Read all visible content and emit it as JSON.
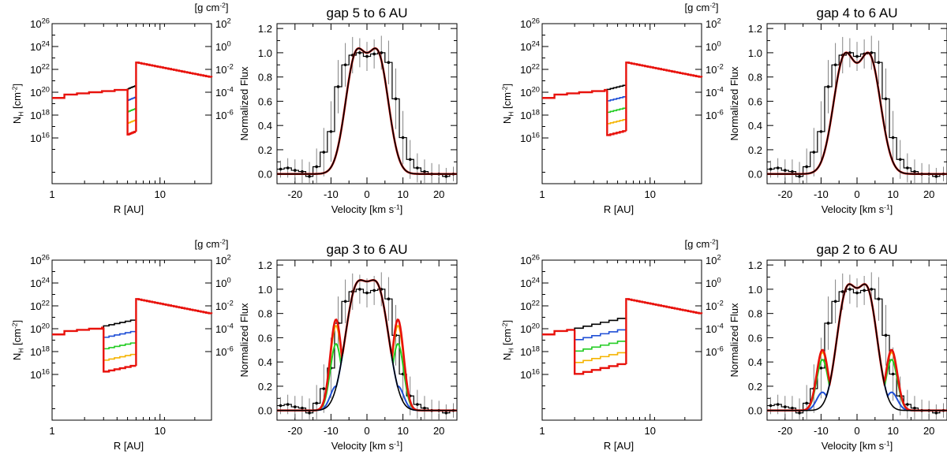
{
  "chart_data": [
    {
      "type": "line",
      "panel": "density",
      "gap": [
        5,
        6
      ],
      "title": "",
      "xlabel": "R [AU]",
      "ylabel": "N_H [cm^-2]",
      "y2label": "[g cm^-2]",
      "xscale": "log",
      "xlim": [
        1,
        30
      ],
      "ylim": [
        12.0,
        26.0
      ],
      "xticks": [
        {
          "v": 1,
          "label": "1"
        },
        {
          "v": 10,
          "label": "10"
        }
      ],
      "yticks": [
        16,
        18,
        20,
        22,
        24,
        26
      ],
      "y2ticks": [
        -6,
        -4,
        -2,
        0,
        2
      ],
      "inner_steps": {
        "r": [
          1.0,
          1.3,
          1.7,
          2.2,
          2.9,
          3.8,
          5.0
        ],
        "logN": [
          19.5,
          19.8,
          19.9,
          20.0,
          20.1,
          20.2,
          20.3
        ]
      },
      "outer_disk": {
        "r_start": 6.0,
        "r_end": 30.0,
        "logN_start": 22.6,
        "logN_end": 21.3
      },
      "gap_series": [
        {
          "name": "black",
          "color": "#000000",
          "logN": [
            20.3,
            20.55
          ]
        },
        {
          "name": "blue",
          "color": "#1f4fd6",
          "logN": [
            19.3,
            19.55
          ]
        },
        {
          "name": "green",
          "color": "#22cc22",
          "logN": [
            18.3,
            18.55
          ]
        },
        {
          "name": "yellow",
          "color": "#f5b400",
          "logN": [
            17.3,
            17.55
          ]
        },
        {
          "name": "red",
          "color": "#e8120c",
          "logN": [
            16.3,
            16.55
          ]
        }
      ]
    },
    {
      "type": "line",
      "panel": "profile",
      "title": "gap 5 to 6 AU",
      "xlabel": "Velocity [km s^-1]",
      "ylabel": "Normalized Flux",
      "xlim": [
        -25,
        25
      ],
      "ylim": [
        -0.08,
        1.24
      ],
      "xticks": [
        -20,
        -10,
        0,
        10,
        20
      ],
      "yticks": [
        0.0,
        0.2,
        0.4,
        0.6,
        0.8,
        1.0,
        1.2
      ],
      "models": [
        {
          "name": "black",
          "color": "#000000",
          "peaks": 3.2,
          "width": 5.5,
          "inner_r": 5,
          "shoulder_amp": 0.0
        },
        {
          "name": "blue",
          "color": "#1f4fd6",
          "peaks": 3.2,
          "width": 5.5,
          "inner_r": 5,
          "shoulder_amp": 0.0
        },
        {
          "name": "green",
          "color": "#22cc22",
          "peaks": 3.2,
          "width": 5.5,
          "inner_r": 5,
          "shoulder_amp": 0.0
        },
        {
          "name": "yellow",
          "color": "#f5b400",
          "peaks": 3.2,
          "width": 5.5,
          "inner_r": 5,
          "shoulder_amp": 0.0
        },
        {
          "name": "red",
          "color": "#e8120c",
          "peaks": 3.2,
          "width": 5.5,
          "inner_r": 5,
          "shoulder_amp": 0.0
        }
      ],
      "observed": {
        "v": [
          -24,
          -22,
          -20,
          -18,
          -16,
          -14,
          -12,
          -10,
          -8,
          -6,
          -4,
          -2,
          0,
          2,
          4,
          6,
          8,
          10,
          12,
          14,
          16,
          18,
          20,
          22,
          24
        ],
        "flux": [
          0.04,
          0.05,
          0.03,
          0.02,
          -0.02,
          0.06,
          0.18,
          0.35,
          0.72,
          0.9,
          0.98,
          1.0,
          0.97,
          0.99,
          1.0,
          0.92,
          0.62,
          0.3,
          0.12,
          0.05,
          0.02,
          0.0,
          0.0,
          -0.02,
          0.0
        ],
        "err": [
          0.07,
          0.08,
          0.09,
          0.1,
          0.12,
          0.15,
          0.2,
          0.25,
          0.22,
          0.18,
          0.15,
          0.12,
          0.12,
          0.12,
          0.14,
          0.18,
          0.25,
          0.22,
          0.16,
          0.12,
          0.1,
          0.09,
          0.08,
          0.07,
          0.06
        ]
      }
    },
    {
      "type": "line",
      "panel": "density",
      "gap": [
        4,
        6
      ],
      "title": "",
      "xlabel": "R [AU]",
      "ylabel": "N_H [cm^-2]",
      "y2label": "[g cm^-2]",
      "xscale": "log",
      "xlim": [
        1,
        30
      ],
      "ylim": [
        12.0,
        26.0
      ],
      "xticks": [
        {
          "v": 1,
          "label": "1"
        },
        {
          "v": 10,
          "label": "10"
        }
      ],
      "yticks": [
        16,
        18,
        20,
        22,
        24,
        26
      ],
      "y2ticks": [
        -6,
        -4,
        -2,
        0,
        2
      ],
      "inner_steps": {
        "r": [
          1.0,
          1.3,
          1.7,
          2.2,
          2.9,
          3.8,
          4.0
        ],
        "logN": [
          19.5,
          19.8,
          19.9,
          20.0,
          20.1,
          20.2,
          20.2
        ]
      },
      "outer_disk": {
        "r_start": 6.0,
        "r_end": 30.0,
        "logN_start": 22.6,
        "logN_end": 21.3
      },
      "gap_series": [
        {
          "name": "black",
          "color": "#000000",
          "logN": [
            20.25,
            20.6
          ]
        },
        {
          "name": "blue",
          "color": "#1f4fd6",
          "logN": [
            19.25,
            19.6
          ]
        },
        {
          "name": "green",
          "color": "#22cc22",
          "logN": [
            18.25,
            18.6
          ]
        },
        {
          "name": "yellow",
          "color": "#f5b400",
          "logN": [
            17.25,
            17.6
          ]
        },
        {
          "name": "red",
          "color": "#e8120c",
          "logN": [
            16.25,
            16.6
          ]
        }
      ]
    },
    {
      "type": "line",
      "panel": "profile",
      "title": "gap 4 to 6 AU",
      "xlabel": "Velocity [km s^-1]",
      "ylabel": "Normalized Flux",
      "xlim": [
        -25,
        25
      ],
      "ylim": [
        -0.08,
        1.24
      ],
      "xticks": [
        -20,
        -10,
        0,
        10,
        20
      ],
      "yticks": [
        0.0,
        0.2,
        0.4,
        0.6,
        0.8,
        1.0,
        1.2
      ],
      "models": [
        {
          "name": "black",
          "color": "#000000",
          "peaks": 3.6,
          "width": 5.8,
          "inner_r": 4,
          "shoulder_amp": 0.0
        },
        {
          "name": "blue",
          "color": "#1f4fd6",
          "peaks": 3.6,
          "width": 5.8,
          "inner_r": 4,
          "shoulder_amp": 0.0
        },
        {
          "name": "green",
          "color": "#22cc22",
          "peaks": 3.6,
          "width": 5.8,
          "inner_r": 4,
          "shoulder_amp": 0.0
        },
        {
          "name": "yellow",
          "color": "#f5b400",
          "peaks": 3.6,
          "width": 5.8,
          "inner_r": 4,
          "shoulder_amp": 0.0
        },
        {
          "name": "red",
          "color": "#e8120c",
          "peaks": 3.6,
          "width": 5.8,
          "inner_r": 4,
          "shoulder_amp": 0.0
        }
      ],
      "observed": {
        "v": [
          -24,
          -22,
          -20,
          -18,
          -16,
          -14,
          -12,
          -10,
          -8,
          -6,
          -4,
          -2,
          0,
          2,
          4,
          6,
          8,
          10,
          12,
          14,
          16,
          18,
          20,
          22,
          24
        ],
        "flux": [
          0.04,
          0.05,
          0.03,
          0.02,
          -0.02,
          0.06,
          0.18,
          0.35,
          0.72,
          0.9,
          0.98,
          1.0,
          0.97,
          0.99,
          1.0,
          0.92,
          0.62,
          0.3,
          0.12,
          0.05,
          0.02,
          0.0,
          0.0,
          -0.02,
          0.0
        ],
        "err": [
          0.07,
          0.08,
          0.09,
          0.1,
          0.12,
          0.15,
          0.2,
          0.25,
          0.22,
          0.18,
          0.15,
          0.12,
          0.12,
          0.12,
          0.14,
          0.18,
          0.25,
          0.22,
          0.16,
          0.12,
          0.1,
          0.09,
          0.08,
          0.07,
          0.06
        ]
      }
    },
    {
      "type": "line",
      "panel": "density",
      "gap": [
        3,
        6
      ],
      "title": "",
      "xlabel": "R [AU]",
      "ylabel": "N_H [cm^-2]",
      "y2label": "[g cm^-2]",
      "xscale": "log",
      "xlim": [
        1,
        30
      ],
      "ylim": [
        12.0,
        26.0
      ],
      "xticks": [
        {
          "v": 1,
          "label": "1"
        },
        {
          "v": 10,
          "label": "10"
        }
      ],
      "yticks": [
        16,
        18,
        20,
        22,
        24,
        26
      ],
      "y2ticks": [
        -6,
        -4,
        -2,
        0,
        2
      ],
      "inner_steps": {
        "r": [
          1.0,
          1.3,
          1.7,
          2.2,
          2.9,
          3.0
        ],
        "logN": [
          19.5,
          19.8,
          19.9,
          20.0,
          20.1,
          20.1
        ]
      },
      "outer_disk": {
        "r_start": 6.0,
        "r_end": 30.0,
        "logN_start": 22.6,
        "logN_end": 21.3
      },
      "gap_series": [
        {
          "name": "black",
          "color": "#000000",
          "logN": [
            20.25,
            20.75
          ]
        },
        {
          "name": "blue",
          "color": "#1f4fd6",
          "logN": [
            19.25,
            19.75
          ]
        },
        {
          "name": "green",
          "color": "#22cc22",
          "logN": [
            18.25,
            18.75
          ]
        },
        {
          "name": "yellow",
          "color": "#f5b400",
          "logN": [
            17.25,
            17.75
          ]
        },
        {
          "name": "red",
          "color": "#e8120c",
          "logN": [
            16.25,
            16.75
          ]
        }
      ]
    },
    {
      "type": "line",
      "panel": "profile",
      "title": "gap 3 to 6 AU",
      "xlabel": "Velocity [km s^-1]",
      "ylabel": "Normalized Flux",
      "xlim": [
        -25,
        25
      ],
      "ylim": [
        -0.08,
        1.24
      ],
      "xticks": [
        -20,
        -10,
        0,
        10,
        20
      ],
      "yticks": [
        0.0,
        0.2,
        0.4,
        0.6,
        0.8,
        1.0,
        1.2
      ],
      "models": [
        {
          "name": "black",
          "color": "#000000",
          "peaks": 3.2,
          "width": 5.8,
          "inner_r": 3,
          "shoulder_amp": 0.0
        },
        {
          "name": "blue",
          "color": "#1f4fd6",
          "peaks": 3.2,
          "width": 5.8,
          "inner_r": 3,
          "shoulder_amp": 0.2
        },
        {
          "name": "green",
          "color": "#22cc22",
          "peaks": 3.2,
          "width": 5.8,
          "inner_r": 3,
          "shoulder_amp": 0.55
        },
        {
          "name": "yellow",
          "color": "#f5b400",
          "peaks": 3.2,
          "width": 5.8,
          "inner_r": 3,
          "shoulder_amp": 0.7
        },
        {
          "name": "red",
          "color": "#e8120c",
          "peaks": 3.2,
          "width": 5.8,
          "inner_r": 3,
          "shoulder_amp": 0.75
        }
      ],
      "observed": {
        "v": [
          -24,
          -22,
          -20,
          -18,
          -16,
          -14,
          -12,
          -10,
          -8,
          -6,
          -4,
          -2,
          0,
          2,
          4,
          6,
          8,
          10,
          12,
          14,
          16,
          18,
          20,
          22,
          24
        ],
        "flux": [
          0.04,
          0.05,
          0.03,
          0.02,
          -0.02,
          0.06,
          0.18,
          0.35,
          0.72,
          0.9,
          0.98,
          1.0,
          0.97,
          0.99,
          1.0,
          0.92,
          0.62,
          0.3,
          0.12,
          0.05,
          0.02,
          0.0,
          0.0,
          -0.02,
          0.0
        ],
        "err": [
          0.07,
          0.08,
          0.09,
          0.1,
          0.12,
          0.15,
          0.2,
          0.25,
          0.22,
          0.18,
          0.15,
          0.12,
          0.12,
          0.12,
          0.14,
          0.18,
          0.25,
          0.22,
          0.16,
          0.12,
          0.1,
          0.09,
          0.08,
          0.07,
          0.06
        ]
      }
    },
    {
      "type": "line",
      "panel": "density",
      "gap": [
        2,
        6
      ],
      "title": "",
      "xlabel": "R [AU]",
      "ylabel": "N_H [cm^-2]",
      "y2label": "[g cm^-2]",
      "xscale": "log",
      "xlim": [
        1,
        30
      ],
      "ylim": [
        12.0,
        26.0
      ],
      "xticks": [
        {
          "v": 1,
          "label": "1"
        },
        {
          "v": 10,
          "label": "10"
        }
      ],
      "yticks": [
        16,
        18,
        20,
        22,
        24,
        26
      ],
      "y2ticks": [
        -6,
        -4,
        -2,
        0,
        2
      ],
      "inner_steps": {
        "r": [
          1.0,
          1.3,
          1.7,
          2.0
        ],
        "logN": [
          19.5,
          19.8,
          19.9,
          19.9
        ]
      },
      "outer_disk": {
        "r_start": 6.0,
        "r_end": 30.0,
        "logN_start": 22.6,
        "logN_end": 21.3
      },
      "gap_series": [
        {
          "name": "black",
          "color": "#000000",
          "logN": [
            20.05,
            20.9
          ]
        },
        {
          "name": "blue",
          "color": "#1f4fd6",
          "logN": [
            19.05,
            19.9
          ]
        },
        {
          "name": "green",
          "color": "#22cc22",
          "logN": [
            18.05,
            18.9
          ]
        },
        {
          "name": "yellow",
          "color": "#f5b400",
          "logN": [
            17.05,
            17.9
          ]
        },
        {
          "name": "red",
          "color": "#e8120c",
          "logN": [
            16.05,
            16.9
          ]
        }
      ]
    },
    {
      "type": "line",
      "panel": "profile",
      "title": "gap 2 to 6 AU",
      "xlabel": "Velocity [km s^-1]",
      "ylabel": "Normalized Flux",
      "xlim": [
        -25,
        25
      ],
      "ylim": [
        -0.08,
        1.24
      ],
      "xticks": [
        -20,
        -10,
        0,
        10,
        20
      ],
      "yticks": [
        0.0,
        0.2,
        0.4,
        0.6,
        0.8,
        1.0,
        1.2
      ],
      "models": [
        {
          "name": "black",
          "color": "#000000",
          "peaks": 3.0,
          "width": 5.2,
          "inner_r": 2,
          "shoulder_amp": 0.0
        },
        {
          "name": "blue",
          "color": "#1f4fd6",
          "peaks": 3.0,
          "width": 5.2,
          "inner_r": 2,
          "shoulder_amp": 0.15
        },
        {
          "name": "green",
          "color": "#22cc22",
          "peaks": 3.0,
          "width": 5.2,
          "inner_r": 2,
          "shoulder_amp": 0.42
        },
        {
          "name": "yellow",
          "color": "#f5b400",
          "peaks": 3.0,
          "width": 5.2,
          "inner_r": 2,
          "shoulder_amp": 0.48
        },
        {
          "name": "red",
          "color": "#e8120c",
          "peaks": 3.0,
          "width": 5.2,
          "inner_r": 2,
          "shoulder_amp": 0.5
        }
      ],
      "observed": {
        "v": [
          -24,
          -22,
          -20,
          -18,
          -16,
          -14,
          -12,
          -10,
          -8,
          -6,
          -4,
          -2,
          0,
          2,
          4,
          6,
          8,
          10,
          12,
          14,
          16,
          18,
          20,
          22,
          24
        ],
        "flux": [
          0.04,
          0.05,
          0.03,
          0.02,
          -0.02,
          0.06,
          0.18,
          0.35,
          0.72,
          0.9,
          0.98,
          1.0,
          0.97,
          0.99,
          1.0,
          0.92,
          0.62,
          0.3,
          0.12,
          0.05,
          0.02,
          0.0,
          0.0,
          -0.02,
          0.0
        ],
        "err": [
          0.07,
          0.08,
          0.09,
          0.1,
          0.12,
          0.15,
          0.2,
          0.25,
          0.22,
          0.18,
          0.15,
          0.12,
          0.12,
          0.12,
          0.14,
          0.18,
          0.25,
          0.22,
          0.16,
          0.12,
          0.1,
          0.09,
          0.08,
          0.07,
          0.06
        ]
      }
    }
  ]
}
